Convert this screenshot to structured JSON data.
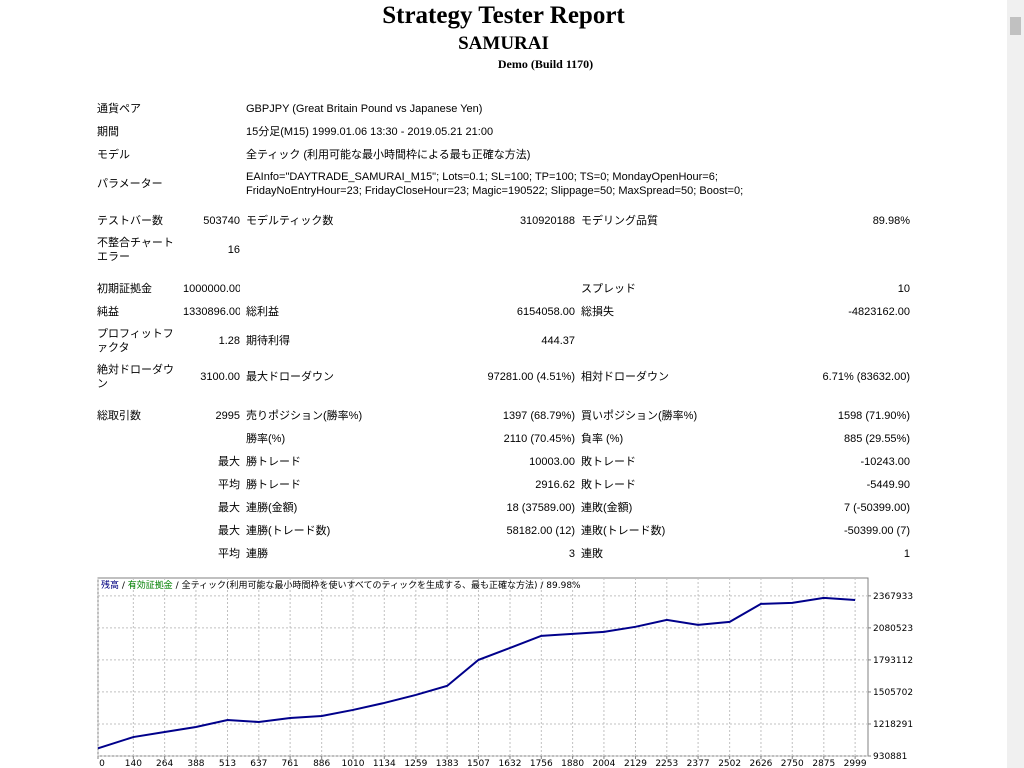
{
  "header": {
    "title": "Strategy Tester Report",
    "subtitle": "SAMURAI",
    "build": "Demo (Build 1170)"
  },
  "table": {
    "info": [
      [
        "通貨ペア",
        "GBPJPY (Great Britain Pound vs Japanese Yen)"
      ],
      [
        "期間",
        "15分足(M15) 1999.01.06 13:30 - 2019.05.21 21:00"
      ],
      [
        "モデル",
        "全ティック (利用可能な最小時間枠による最も正確な方法)"
      ],
      [
        "パラメーター",
        "EAInfo=\"DAYTRADE_SAMURAI_M15\"; Lots=0.1; SL=100; TP=100; TS=0; MondayOpenHour=6; FridayNoEntryHour=23; FridayCloseHour=23; Magic=190522; Slippage=50; MaxSpread=50; Boost=0;"
      ]
    ],
    "stats": [
      [
        "テストバー数",
        "503740",
        "モデルティック数",
        "310920188",
        "モデリング品質",
        "89.98%"
      ],
      [
        "不整合チャートエラー",
        "16",
        null,
        null,
        null,
        null
      ],
      [
        "初期証拠金",
        "1000000.00",
        null,
        null,
        "スプレッド",
        "10"
      ],
      [
        "純益",
        "1330896.00",
        "総利益",
        "6154058.00",
        "総損失",
        "-4823162.00"
      ],
      [
        "プロフィットファクタ",
        "1.28",
        "期待利得",
        "444.37",
        null,
        null
      ],
      [
        "絶対ドローダウン",
        "3100.00",
        "最大ドローダウン",
        "97281.00 (4.51%)",
        "相対ドローダウン",
        "6.71% (83632.00)"
      ],
      [
        "総取引数",
        "2995",
        "売りポジション(勝率%)",
        "1397 (68.79%)",
        "買いポジション(勝率%)",
        "1598 (71.90%)"
      ],
      [
        null,
        null,
        "勝率(%)",
        "2110 (70.45%)",
        "負率 (%)",
        "885 (29.55%)"
      ],
      [
        null,
        "最大",
        "勝トレード",
        "10003.00",
        "敗トレード",
        "-10243.00"
      ],
      [
        null,
        "平均",
        "勝トレード",
        "2916.62",
        "敗トレード",
        "-5449.90"
      ],
      [
        null,
        "最大",
        "連勝(金額)",
        "18 (37589.00)",
        "連敗(金額)",
        "7 (-50399.00)"
      ],
      [
        null,
        "最大",
        "連勝(トレード数)",
        "58182.00 (12)",
        "連敗(トレード数)",
        "-50399.00 (7)"
      ],
      [
        null,
        "平均",
        "連勝",
        "3",
        "連敗",
        "1"
      ]
    ]
  },
  "chart_data": {
    "type": "line",
    "legend": [
      {
        "text": "残高",
        "color": "#000080"
      },
      {
        "text": "有効証拠金",
        "color": "#008000"
      },
      {
        "text": "全ティック(利用可能な最小時間枠を使いすべてのティックを生成する、最も正確な方法)",
        "color": "#000000"
      },
      {
        "text": "89.98%",
        "color": "#000000"
      }
    ],
    "x": [
      0,
      140,
      264,
      388,
      513,
      637,
      761,
      886,
      1010,
      1134,
      1259,
      1383,
      1507,
      1632,
      1756,
      1880,
      2004,
      2129,
      2253,
      2377,
      2502,
      2626,
      2750,
      2875,
      2999
    ],
    "series": [
      {
        "name": "残高",
        "color": "#00008b",
        "values": [
          1000000,
          1101000,
          1146000,
          1191000,
          1254000,
          1236000,
          1272000,
          1290000,
          1344000,
          1407000,
          1479000,
          1560000,
          1793000,
          1901000,
          2009000,
          2027000,
          2045000,
          2090000,
          2152000,
          2108000,
          2134000,
          2296000,
          2305000,
          2350000,
          2330896
        ]
      }
    ],
    "xlim": [
      0,
      3050
    ],
    "xticks": [
      0,
      140,
      264,
      388,
      513,
      637,
      761,
      886,
      1010,
      1134,
      1259,
      1383,
      1507,
      1632,
      1756,
      1880,
      2004,
      2129,
      2253,
      2377,
      2502,
      2626,
      2750,
      2875,
      2999
    ],
    "ylim": [
      930881,
      2528000
    ],
    "yticks": [
      930881,
      1218291,
      1505702,
      1793112,
      2080523,
      2367933
    ],
    "grid": true
  }
}
